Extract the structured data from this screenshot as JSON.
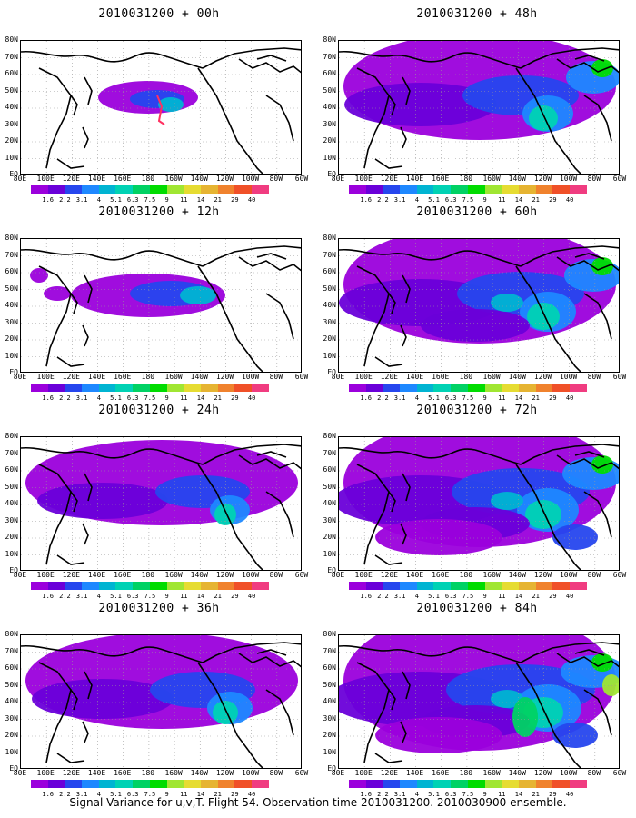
{
  "panels": [
    {
      "title": "2010031200 + 00h",
      "intensity": 0
    },
    {
      "title": "2010031200 + 48h",
      "intensity": 4
    },
    {
      "title": "2010031200 + 12h",
      "intensity": 1
    },
    {
      "title": "2010031200 + 60h",
      "intensity": 5
    },
    {
      "title": "2010031200 + 24h",
      "intensity": 2
    },
    {
      "title": "2010031200 + 72h",
      "intensity": 6
    },
    {
      "title": "2010031200 + 36h",
      "intensity": 3
    },
    {
      "title": "2010031200 + 84h",
      "intensity": 7
    }
  ],
  "lat_labels": [
    "80N",
    "70N",
    "60N",
    "50N",
    "40N",
    "30N",
    "20N",
    "10N",
    "EQ"
  ],
  "lon_labels": [
    "80E",
    "100E",
    "120E",
    "140E",
    "160E",
    "180",
    "160W",
    "140W",
    "120W",
    "100W",
    "80W",
    "60W"
  ],
  "colorbar": {
    "colors": [
      "#9b00dc",
      "#6a00d9",
      "#2646ee",
      "#1e88ff",
      "#00b4d2",
      "#00d2b4",
      "#00d264",
      "#00dc00",
      "#a0e632",
      "#e6dc32",
      "#e6b432",
      "#f0822d",
      "#f05028",
      "#f03c80"
    ],
    "labels": [
      "1.6",
      "2.2",
      "3.1",
      "4",
      "5.1",
      "6.3",
      "7.5",
      "9",
      "11",
      "14",
      "21",
      "29",
      "40"
    ]
  },
  "caption": "Signal Variance for u,v,T. Flight 54. Observation time 2010031200. 2010030900 ensemble."
}
